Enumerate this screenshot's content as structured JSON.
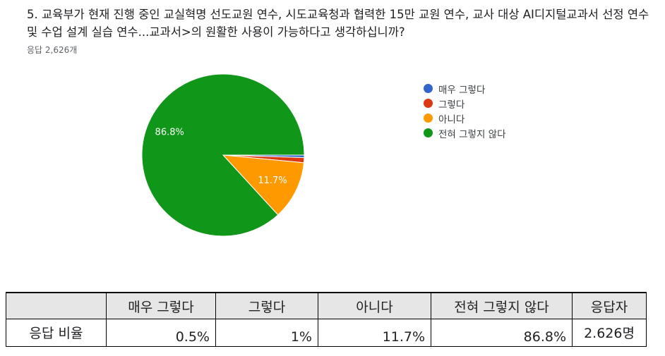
{
  "question": "5. 교육부가 현재 진행 중인 교실혁명 선도교원 연수, 시도교육청과 협력한 15만 교원 연수, 교사 대상 AI디지털교과서 선정 연수 및 수업 설계 실습 연수...교과서>의 원활한 사용이 가능하다고 생각하십니까?",
  "response_count": "응답 2,626개",
  "chart_data": {
    "type": "pie",
    "labels": [
      "매우 그렇다",
      "그렇다",
      "아니다",
      "전혀 그렇지 않다"
    ],
    "values": [
      0.5,
      1.0,
      11.7,
      86.8
    ],
    "data_labels": [
      "",
      "",
      "11.7%",
      "86.8%"
    ],
    "colors": [
      "#3366cc",
      "#dc3912",
      "#ff9900",
      "#109618"
    ],
    "legend_position": "right"
  },
  "table": {
    "headers": [
      "",
      "매우 그렇다",
      "그렇다",
      "아니다",
      "전혀 그렇지 않다",
      "응답자"
    ],
    "row_label": "응답 비율",
    "values": [
      "0.5%",
      "1%",
      "11.7%",
      "86.8%",
      "2.626명"
    ]
  }
}
